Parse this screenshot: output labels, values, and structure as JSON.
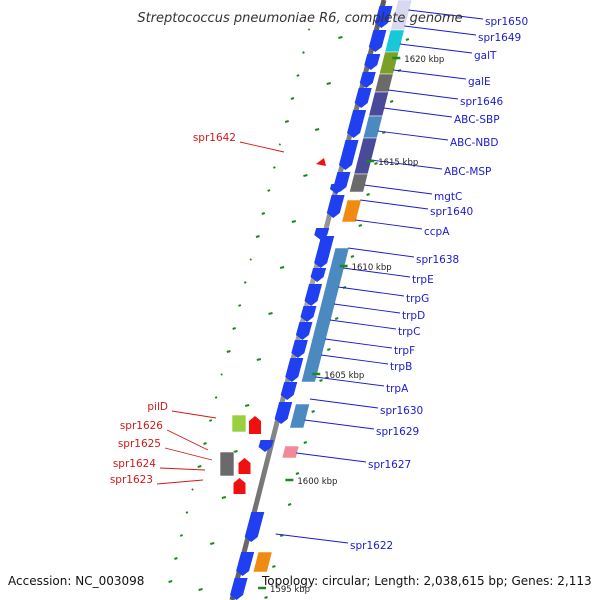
{
  "title": "Streptococcus pneumoniae R6, complete genome",
  "accession": "Accession: NC_003098",
  "topology": "Topology: circular; Length: 2,038,615 bp; Genes: 2,113",
  "colors": {
    "backbone": "#8a8a8a",
    "plus_strand_label": "#1a1ad0",
    "minus_strand_label": "#d01a1a",
    "tick": "#1a8a1a",
    "cds_blue": "#1f3ff0",
    "cds_red": "#f01010",
    "cog_cyan": "#18c8d8",
    "cog_olive": "#7aa028",
    "cog_gray": "#6a6a6a",
    "cog_slate": "#4a4a9a",
    "cog_steel": "#4a8ac0",
    "cog_orange": "#f08a10",
    "cog_lightgreen": "#9ad040",
    "cog_pink": "#f08a98"
  },
  "kbp_ticks": [
    "1620 kbp",
    "1615 kbp",
    "1610 kbp",
    "1605 kbp",
    "1600 kbp",
    "1595 kbp"
  ],
  "right_labels": [
    "spr1650",
    "spr1649",
    "galT",
    "galE",
    "spr1646",
    "ABC-SBP",
    "ABC-NBD",
    "ABC-MSP",
    "mgtC",
    "spr1640",
    "ccpA",
    "spr1638",
    "trpE",
    "trpG",
    "trpD",
    "trpC",
    "trpF",
    "trpB",
    "trpA",
    "spr1630",
    "spr1629",
    "spr1627",
    "spr1622"
  ],
  "left_labels": [
    "spr1642",
    "pilD",
    "spr1626",
    "spr1625",
    "spr1624",
    "spr1623"
  ]
}
